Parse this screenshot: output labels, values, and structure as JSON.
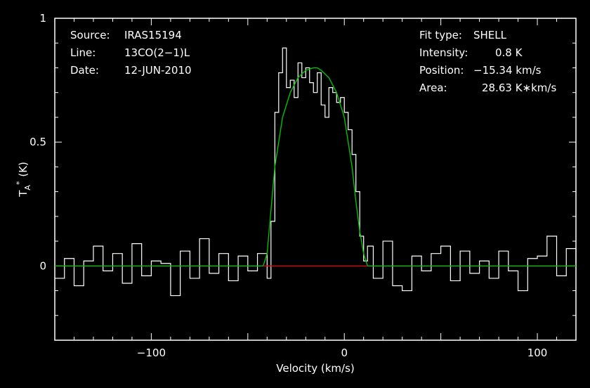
{
  "header_left": [
    {
      "key": "Source:",
      "value": "IRAS15194"
    },
    {
      "key": "Line:",
      "value": "13CO(2−1)L"
    },
    {
      "key": "Date:",
      "value": "12-JUN-2010"
    }
  ],
  "header_right": [
    {
      "key": "Fit type:",
      "value": "SHELL"
    },
    {
      "key": "Intensity:",
      "value": "0.8 K"
    },
    {
      "key": "Position:",
      "value": "−15.34 km/s"
    },
    {
      "key": "Area:",
      "value": "28.63 K∗km/s"
    }
  ],
  "colors": {
    "background": "#000000",
    "spectrum": "#ffffff",
    "fit": "#00c000",
    "baseline": "#e00000",
    "axes": "#ffffff"
  },
  "chart_data": {
    "type": "line",
    "xlabel": "Velocity (km/s)",
    "ylabel": "T",
    "ylabel_sub": "A",
    "ylabel_sup": "*",
    "ylabel_unit": "(K)",
    "xlim": [
      -150,
      120
    ],
    "ylim": [
      -0.3,
      1.0
    ],
    "x_ticks": [
      {
        "value": -100,
        "label": "−100"
      },
      {
        "value": 0,
        "label": "0"
      },
      {
        "value": 100,
        "label": "100"
      }
    ],
    "y_ticks": [
      {
        "value": 0,
        "label": "0"
      },
      {
        "value": 0.5,
        "label": "0.5"
      },
      {
        "value": 1.0,
        "label": "1"
      }
    ],
    "series": [
      {
        "role": "spectrum",
        "x": [
          -150,
          -145,
          -140,
          -135,
          -130,
          -125,
          -120,
          -115,
          -110,
          -105,
          -100,
          -95,
          -90,
          -85,
          -80,
          -75,
          -70,
          -65,
          -60,
          -55,
          -50,
          -45,
          -40,
          -38,
          -36,
          -34,
          -32,
          -30,
          -28,
          -26,
          -24,
          -22,
          -20,
          -18,
          -16,
          -14,
          -12,
          -10,
          -8,
          -6,
          -4,
          -2,
          0,
          2,
          4,
          6,
          8,
          10,
          12,
          15,
          20,
          25,
          30,
          35,
          40,
          45,
          50,
          55,
          60,
          65,
          70,
          75,
          80,
          85,
          90,
          95,
          100,
          105,
          110,
          115,
          120
        ],
        "y": [
          -0.05,
          0.03,
          -0.08,
          0.02,
          0.08,
          -0.02,
          0.05,
          -0.07,
          0.09,
          -0.04,
          0.02,
          0.01,
          -0.12,
          0.06,
          -0.05,
          0.11,
          -0.03,
          0.05,
          -0.06,
          0.04,
          -0.02,
          0.05,
          -0.05,
          0.18,
          0.62,
          0.78,
          0.88,
          0.72,
          0.75,
          0.68,
          0.82,
          0.76,
          0.8,
          0.74,
          0.7,
          0.78,
          0.65,
          0.6,
          0.72,
          0.7,
          0.66,
          0.68,
          0.62,
          0.55,
          0.45,
          0.3,
          0.12,
          0.02,
          0.08,
          -0.05,
          0.1,
          -0.08,
          -0.1,
          0.04,
          -0.02,
          0.05,
          0.08,
          -0.06,
          0.06,
          -0.03,
          0.02,
          -0.05,
          0.06,
          -0.02,
          -0.1,
          0.03,
          0.04,
          0.12,
          -0.04,
          0.07,
          0.01
        ]
      },
      {
        "role": "fit",
        "x": [
          -150,
          -42,
          -40,
          -36,
          -32,
          -28,
          -24,
          -20,
          -16,
          -14,
          -12,
          -8,
          -4,
          0,
          4,
          6,
          8,
          10,
          12,
          120
        ],
        "y": [
          0,
          0,
          0.05,
          0.4,
          0.6,
          0.7,
          0.76,
          0.79,
          0.8,
          0.8,
          0.79,
          0.76,
          0.7,
          0.6,
          0.4,
          0.26,
          0.14,
          0.05,
          0,
          0
        ]
      },
      {
        "role": "baseline",
        "x": [
          -42,
          12
        ],
        "y": [
          0,
          0
        ]
      }
    ]
  }
}
